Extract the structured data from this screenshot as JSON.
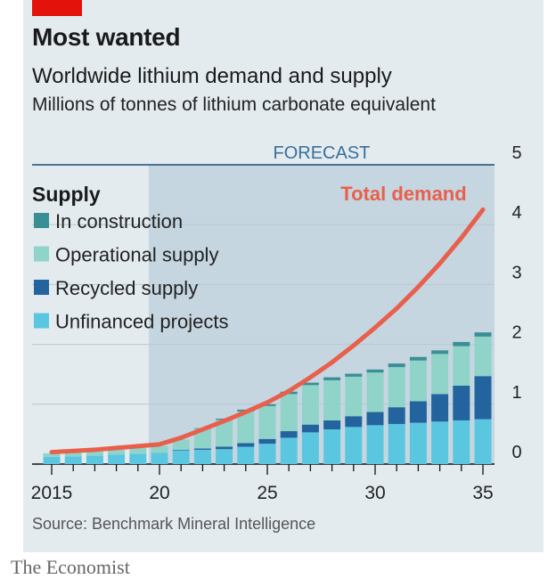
{
  "header": {
    "title": "Most wanted",
    "subtitle": "Worldwide lithium demand and supply",
    "units": "Millions of tonnes of lithium carbonate equivalent"
  },
  "footer": {
    "source": "Source: Benchmark Mineral Intelligence",
    "brand": "The Economist"
  },
  "colors": {
    "brand_red": "#e3120b",
    "in_construction": "#3a8f95",
    "operational": "#8fd3c9",
    "recycled": "#23649e",
    "unfinanced": "#5bc6e0",
    "demand": "#e8604c",
    "forecast_shade": "#c6d6e1"
  },
  "chart_data": {
    "type": "area",
    "title": "Worldwide lithium demand and supply",
    "ylabel": "Millions of tonnes of lithium carbonate equivalent",
    "x": [
      2015,
      2016,
      2017,
      2018,
      2019,
      2020,
      2021,
      2022,
      2023,
      2024,
      2025,
      2026,
      2027,
      2028,
      2029,
      2030,
      2031,
      2032,
      2033,
      2034,
      2035
    ],
    "x_tick_labels": [
      "2015",
      "20",
      "25",
      "30",
      "35"
    ],
    "x_tick_values": [
      2015,
      2020,
      2025,
      2030,
      2035
    ],
    "ylim": [
      0,
      5
    ],
    "y_ticks": [
      0,
      1,
      2,
      3,
      4,
      5
    ],
    "y_axis_side": "right",
    "grid": true,
    "forecast_label": "FORECAST",
    "forecast_start": 2019.5,
    "legend_title": "Supply",
    "legend_position": "top-left",
    "series": [
      {
        "name": "Unfinanced projects",
        "kind": "bar",
        "color": "#5bc6e0",
        "values": [
          0.12,
          0.13,
          0.14,
          0.16,
          0.17,
          0.19,
          0.23,
          0.24,
          0.25,
          0.29,
          0.34,
          0.44,
          0.53,
          0.58,
          0.62,
          0.65,
          0.67,
          0.69,
          0.71,
          0.73,
          0.75
        ]
      },
      {
        "name": "Recycled supply",
        "kind": "bar",
        "color": "#23649e",
        "values": [
          0,
          0,
          0,
          0,
          0,
          0,
          0.01,
          0.02,
          0.04,
          0.06,
          0.08,
          0.11,
          0.13,
          0.15,
          0.18,
          0.22,
          0.28,
          0.36,
          0.46,
          0.58,
          0.72
        ]
      },
      {
        "name": "Operational supply",
        "kind": "bar",
        "color": "#8fd3c9",
        "values": [
          0.06,
          0.06,
          0.07,
          0.08,
          0.1,
          0.11,
          0.17,
          0.33,
          0.45,
          0.53,
          0.55,
          0.62,
          0.66,
          0.67,
          0.66,
          0.66,
          0.67,
          0.68,
          0.67,
          0.66,
          0.66
        ]
      },
      {
        "name": "In construction",
        "kind": "bar",
        "color": "#3a8f95",
        "values": [
          0,
          0,
          0,
          0,
          0,
          0,
          0,
          0.01,
          0.02,
          0.03,
          0.03,
          0.04,
          0.04,
          0.05,
          0.05,
          0.05,
          0.06,
          0.06,
          0.06,
          0.07,
          0.07
        ]
      },
      {
        "name": "Total demand",
        "kind": "line",
        "color": "#e8604c",
        "values": [
          0.2,
          0.22,
          0.24,
          0.27,
          0.3,
          0.33,
          0.44,
          0.58,
          0.72,
          0.87,
          1.03,
          1.22,
          1.45,
          1.7,
          1.98,
          2.28,
          2.6,
          2.96,
          3.35,
          3.78,
          4.25
        ]
      }
    ],
    "legend_order": [
      "In construction",
      "Operational supply",
      "Recycled supply",
      "Unfinanced projects"
    ]
  }
}
